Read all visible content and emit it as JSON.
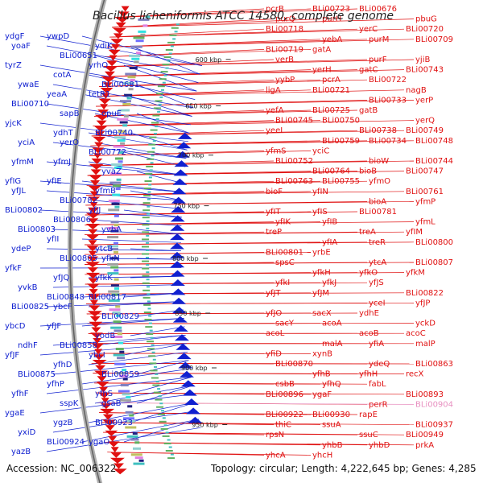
{
  "title": "Bacillus licheniformis ATCC 14580, complete genome",
  "footer": {
    "accession": "Accession: NC_006322",
    "summary": "Topology: circular; Length: 4,222,645 bp; Genes: 4,285"
  },
  "colors": {
    "plus_strand": "#e01010",
    "minus_strand": "#1020d0",
    "highlight": "#e890c0",
    "backbone": "#999999"
  },
  "ticks": [
    "600 kbp",
    "650 kbp",
    "700 kbp",
    "750 kbp",
    "800 kbp",
    "850 kbp",
    "900 kbp",
    "950 kbp"
  ],
  "plus_labels": [
    "pcrB",
    "BLi00723",
    "BLi00676",
    "pbuG",
    "purQ",
    "purH",
    "yerC",
    "BLi00720",
    "BLi00718",
    "yebA",
    "purM",
    "BLi00709",
    "BLi00719",
    "gatA",
    "purF",
    "yjiB",
    "verB",
    "yerH",
    "gatC",
    "BLi00743",
    "yybP",
    "pcrA",
    "BLi00722",
    "nagB",
    "ligA",
    "BLi00721",
    "BLi00733",
    "yerP",
    "yefA",
    "BLi00725",
    "gatB",
    "yerQ",
    "BLi00745",
    "BLi00750",
    "BLi00738",
    "BLi00749",
    "yeeI",
    "BLi00759",
    "BLi00734",
    "BLi00748",
    "yfmS",
    "yciC",
    "bioW",
    "BLi00744",
    "BLi00752",
    "BLi00764",
    "bioB",
    "BLi00747",
    "BLi00763",
    "BLi00755",
    "yfmO",
    "BLi00761",
    "bioF",
    "yfIN",
    "bioA",
    "yfmP",
    "yfIT",
    "yfIS",
    "BLi00781",
    "yfmL",
    "yfIK",
    "yfIB",
    "treA",
    "yfIM",
    "treP",
    "yfIA",
    "treR",
    "BLi00800",
    "BLi00801",
    "yrbE",
    "ytcA",
    "BLi00807",
    "spsC",
    "yfkH",
    "yfkO",
    "yfkM",
    "yfkI",
    "yfkJ",
    "yfJS",
    "BLi00822",
    "yfJT",
    "yfJM",
    "yceI",
    "yfJP",
    "yfJO",
    "sacX",
    "ydhE",
    "yckD",
    "sacY",
    "acoA",
    "acoB",
    "acoC",
    "acoL",
    "malA",
    "yfiA",
    "malP",
    "yfiD",
    "xynB",
    "ydeQ",
    "BLi00863",
    "BLi00870",
    "yfhB",
    "yfhH",
    "recX",
    "csbB",
    "yfhQ",
    "fabL",
    "BLi00893",
    "BLi00896",
    "ygaF",
    "perR",
    "BLi00904",
    "BLi00922",
    "BLi00930",
    "rapE",
    "BLi00937",
    "thiC",
    "ssuA",
    "ssuC",
    "BLi00949",
    "rpsN",
    "yhbB",
    "yhbD",
    "prkA",
    "yhcA",
    "yhcH"
  ],
  "minus_labels": [
    "ydgF",
    "ywpD",
    "ydiK",
    "yoaF",
    "BLi00651",
    "yrhO",
    "tyrZ",
    "cotA",
    "BLi00681",
    "ywaE",
    "yeaA",
    "tetR1",
    "BLi00710",
    "sapB",
    "opuE",
    "yjcK",
    "ydhT",
    "BLi00740",
    "yciA",
    "yerO",
    "BLi00772",
    "yfmM",
    "yfmJ",
    "yvaZ",
    "yfIG",
    "yfIE",
    "yfmB",
    "yfJL",
    "BLi00782",
    "yfJJ",
    "BLi00802",
    "BLi00806",
    "yvbA",
    "BLi00803",
    "yfII",
    "ytcB",
    "ydeP",
    "BLi00805",
    "yfkN",
    "yfkF",
    "yfJQ",
    "yfkK",
    "yvkB",
    "BLi00848",
    "BLi00817",
    "BLi00825",
    "ybcF",
    "BLi00829",
    "ybcD",
    "yfJF",
    "yodB",
    "ndhF",
    "BLi00858",
    "ybcI",
    "yfJF",
    "yfhD",
    "BLi00859",
    "BLi00875",
    "yfhP",
    "yfhS",
    "yfhF",
    "sspK",
    "gsaB",
    "ygaE",
    "ygzB",
    "BLi00923",
    "yxiD",
    "BLi00924",
    "ygaO",
    "yazB"
  ]
}
